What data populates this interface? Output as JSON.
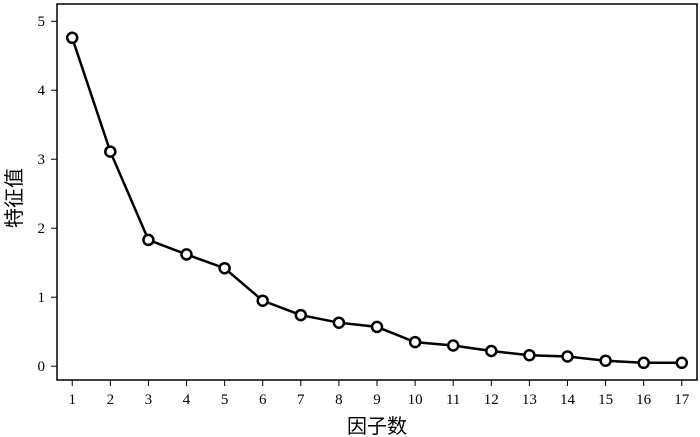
{
  "chart_data": {
    "type": "line",
    "title": "",
    "xlabel": "因子数",
    "ylabel": "特征值",
    "x": [
      1,
      2,
      3,
      4,
      5,
      6,
      7,
      8,
      9,
      10,
      11,
      12,
      13,
      14,
      15,
      16,
      17
    ],
    "series": [
      {
        "values": [
          4.76,
          3.11,
          1.83,
          1.62,
          1.42,
          0.95,
          0.74,
          0.63,
          0.57,
          0.35,
          0.3,
          0.22,
          0.16,
          0.14,
          0.08,
          0.05,
          0.05
        ]
      }
    ],
    "xticks": [
      "1",
      "2",
      "3",
      "4",
      "5",
      "6",
      "7",
      "8",
      "9",
      "10",
      "11",
      "12",
      "13",
      "14",
      "15",
      "16",
      "17"
    ],
    "yticks": [
      "0",
      "1",
      "2",
      "3",
      "4",
      "5"
    ],
    "xlim": [
      0.6,
      17.4
    ],
    "ylim": [
      -0.2,
      5.25
    ],
    "grid": false,
    "marker": "open-circle",
    "line_color": "#000000"
  }
}
